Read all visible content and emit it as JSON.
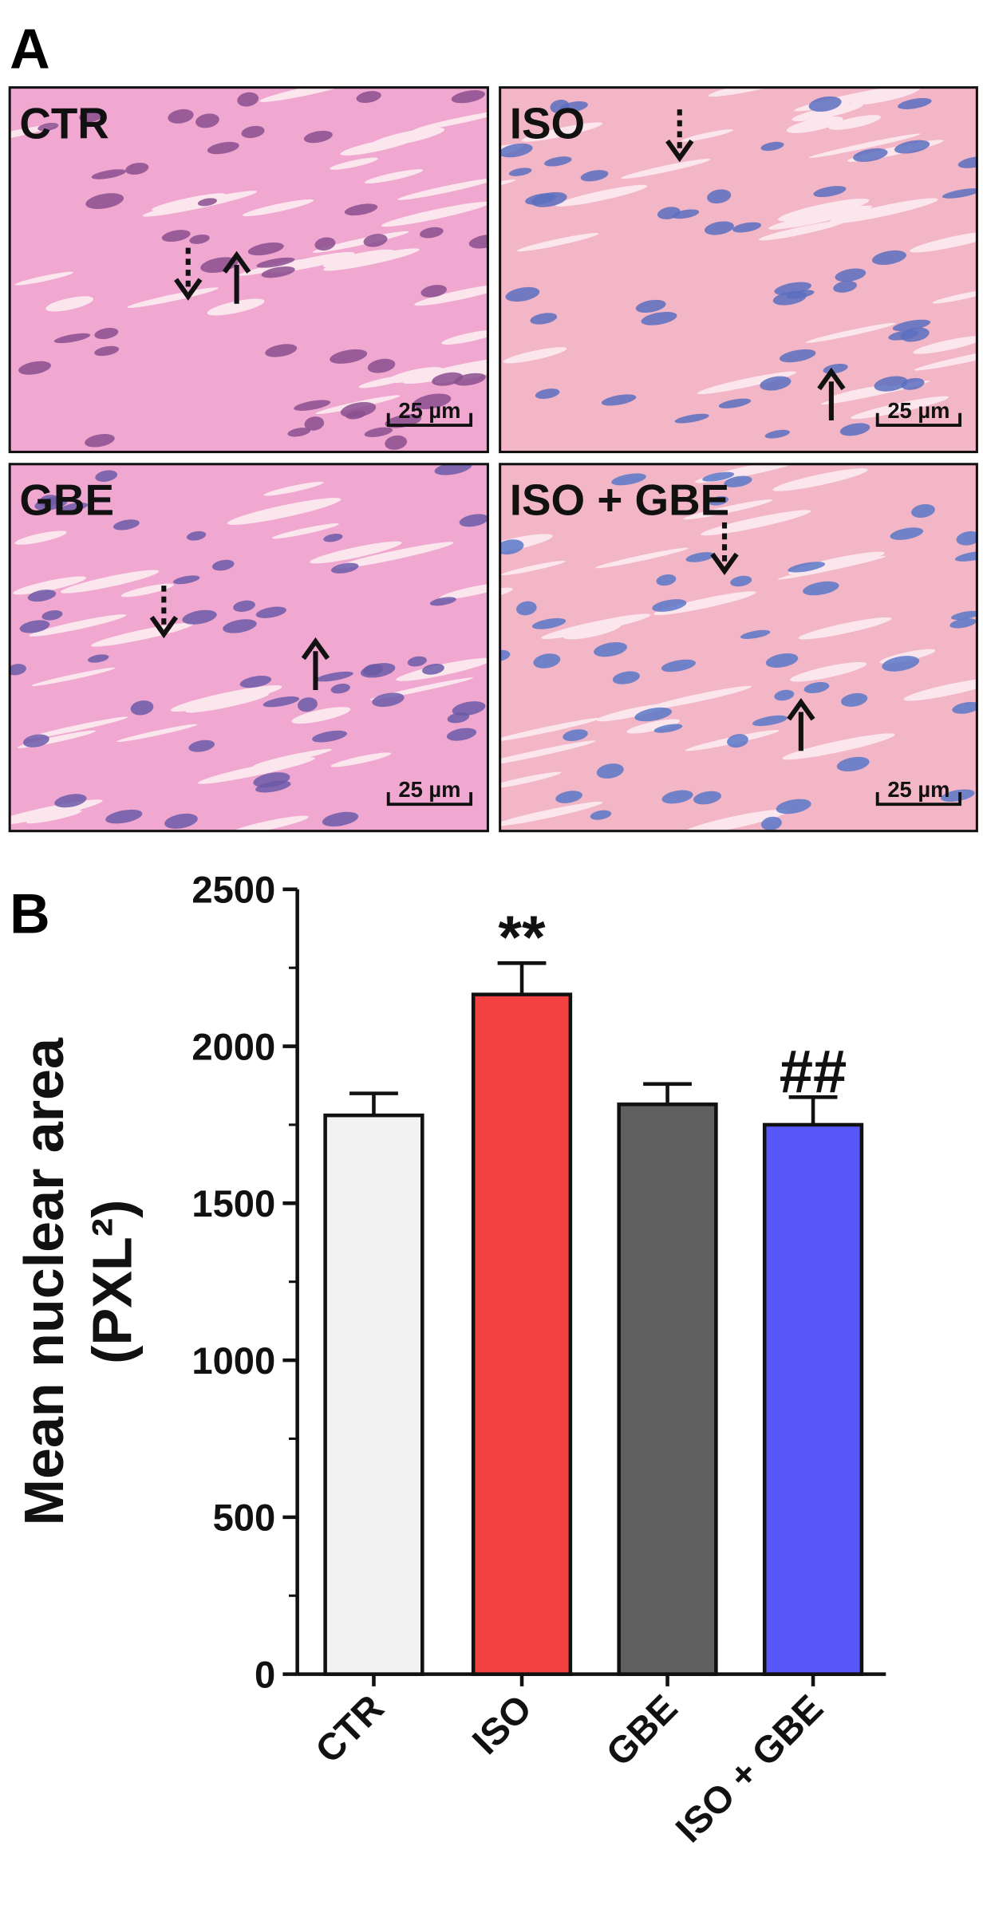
{
  "panels": {
    "label": "A",
    "images": [
      {
        "label": "CTR",
        "scale_bar": "25 µm"
      },
      {
        "label": "ISO",
        "scale_bar": "25 µm"
      },
      {
        "label": "GBE",
        "scale_bar": "25 µm"
      },
      {
        "label": "ISO + GBE",
        "scale_bar": "25 µm"
      }
    ]
  },
  "chart_data": {
    "type": "bar",
    "panel_label": "B",
    "ylabel": "Mean nuclear area",
    "ylabel2": "(PXL²)",
    "categories": [
      "CTR",
      "ISO",
      "GBE",
      "ISO + GBE"
    ],
    "values": [
      1780,
      2165,
      1815,
      1750
    ],
    "errors": [
      70,
      100,
      65,
      88
    ],
    "colors": [
      "#f2f2f2",
      "#f44242",
      "#606060",
      "#5858f8"
    ],
    "annotations": [
      {
        "text": "**",
        "category": "ISO"
      },
      {
        "text": "##",
        "category": "ISO + GBE"
      }
    ],
    "ylim": [
      0,
      2500
    ],
    "yticks": [
      0,
      500,
      1000,
      1500,
      2000,
      2500
    ]
  }
}
